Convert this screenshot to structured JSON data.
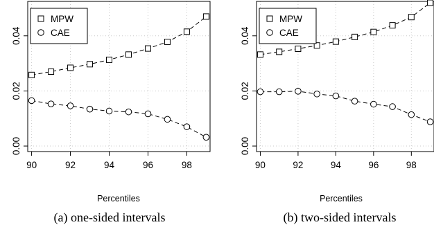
{
  "chart_data": [
    {
      "type": "line",
      "caption": "(a) one-sided intervals",
      "xlabel": "Percentiles",
      "ylabel": "",
      "xlim": [
        89.8,
        99.2
      ],
      "ylim": [
        -0.002,
        0.0525
      ],
      "x_ticks": [
        90,
        92,
        94,
        96,
        98
      ],
      "y_ticks": [
        0.0,
        0.02,
        0.04
      ],
      "y_tick_labels": [
        "0.00",
        "0.02",
        "0.04"
      ],
      "grid": true,
      "legend_position": "top-left",
      "x": [
        90,
        91,
        92,
        93,
        94,
        95,
        96,
        97,
        98,
        99
      ],
      "series": [
        {
          "name": "MPW",
          "marker": "square",
          "values": [
            0.0258,
            0.027,
            0.0284,
            0.0297,
            0.0313,
            0.0332,
            0.0354,
            0.0378,
            0.0415,
            0.047
          ]
        },
        {
          "name": "CAE",
          "marker": "circle",
          "values": [
            0.0165,
            0.0153,
            0.0146,
            0.0134,
            0.0127,
            0.0124,
            0.0117,
            0.0097,
            0.007,
            0.0032
          ]
        }
      ]
    },
    {
      "type": "line",
      "caption": "(b) two-sided intervals",
      "xlabel": "Percentiles",
      "ylabel": "",
      "xlim": [
        89.8,
        99.2
      ],
      "ylim": [
        -0.002,
        0.0525
      ],
      "x_ticks": [
        90,
        92,
        94,
        96,
        98
      ],
      "y_ticks": [
        0.0,
        0.02,
        0.04
      ],
      "y_tick_labels": [
        "0.00",
        "0.02",
        "0.04"
      ],
      "grid": true,
      "legend_position": "top-left",
      "x": [
        90,
        91,
        92,
        93,
        94,
        95,
        96,
        97,
        98,
        99
      ],
      "series": [
        {
          "name": "MPW",
          "marker": "square",
          "values": [
            0.0332,
            0.0342,
            0.0353,
            0.0365,
            0.0379,
            0.0396,
            0.0414,
            0.0438,
            0.0468,
            0.052
          ]
        },
        {
          "name": "CAE",
          "marker": "circle",
          "values": [
            0.0197,
            0.0197,
            0.0199,
            0.0189,
            0.0182,
            0.0163,
            0.0152,
            0.0143,
            0.0114,
            0.0088
          ]
        }
      ]
    }
  ]
}
